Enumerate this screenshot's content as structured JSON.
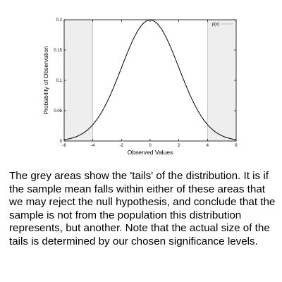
{
  "chart_data": {
    "type": "line",
    "xlabel": "Observed Values",
    "ylabel": "Probability of Observation",
    "xlim": [
      -6,
      6
    ],
    "ylim": [
      0,
      0.2
    ],
    "x_ticks": [
      "-6",
      "-4",
      "-2",
      "0",
      "2",
      "4",
      "6"
    ],
    "y_ticks": [
      "0",
      "0.05",
      "0.1",
      "0.15",
      "0.2"
    ],
    "series": [
      {
        "name": "p(x)",
        "color": "#000000",
        "legend_color": "#bbbbbb",
        "distribution": "normal",
        "mean": 0,
        "sd": 2
      }
    ],
    "shaded_regions": [
      {
        "from": -6,
        "to": -4,
        "color": "#eeeeee"
      },
      {
        "from": 4,
        "to": 6,
        "color": "#eeeeee"
      }
    ],
    "grid": false,
    "legend_position": "top-right"
  },
  "caption": "The grey areas show the 'tails' of the distribution. It is if the sample mean falls within either of these areas that we may reject the null hypothesis, and conclude that the sample is not from the population this distribution represents, but another. Note that the actual size of the tails is determined by our chosen significance levels."
}
